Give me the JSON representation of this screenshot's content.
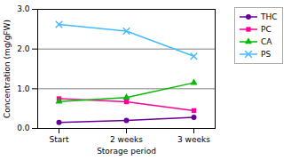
{
  "chart_data": {
    "type": "line",
    "categories": [
      "Start",
      "2 weeks",
      "3 weeks"
    ],
    "series": [
      {
        "name": "THC",
        "color": "#660099",
        "marker": "circle",
        "values": [
          0.15,
          0.2,
          0.28
        ]
      },
      {
        "name": "PC",
        "color": "#ff0099",
        "marker": "square",
        "values": [
          0.75,
          0.67,
          0.45
        ]
      },
      {
        "name": "CA",
        "color": "#00bb00",
        "marker": "triangle",
        "values": [
          0.68,
          0.78,
          1.15
        ]
      },
      {
        "name": "PS",
        "color": "#44bbff",
        "marker": "x",
        "values": [
          2.62,
          2.45,
          1.82
        ]
      }
    ],
    "xlabel": "Storage period",
    "ylabel": "Concentration (mg/gFW)",
    "ylim": [
      0.0,
      3.0
    ],
    "yticks": [
      {
        "value": 0.0,
        "label": "0.0"
      },
      {
        "value": 1.0,
        "label": "1.0"
      },
      {
        "value": 2.0,
        "label": "2.0"
      },
      {
        "value": 3.0,
        "label": "3.0"
      }
    ],
    "grid": true,
    "legend": "right"
  }
}
